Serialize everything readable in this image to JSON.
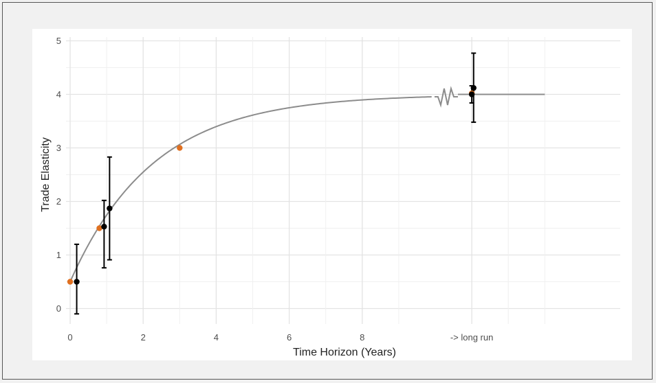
{
  "chart_data": {
    "type": "scatter",
    "xlabel": "Time Horizon (Years)",
    "ylabel": "Trade Elasticity",
    "xlim": [
      -0.2,
      15
    ],
    "ylim": [
      -0.3,
      5
    ],
    "x_ticks": [
      {
        "value": 0,
        "label": "0"
      },
      {
        "value": 2,
        "label": "2"
      },
      {
        "value": 4,
        "label": "4"
      },
      {
        "value": 6,
        "label": "6"
      },
      {
        "value": 8,
        "label": "8"
      },
      {
        "value": 11,
        "label": "-> long run"
      }
    ],
    "y_ticks": [
      {
        "value": 0,
        "label": "0"
      },
      {
        "value": 1,
        "label": "1"
      },
      {
        "value": 2,
        "label": "2"
      },
      {
        "value": 3,
        "label": "3"
      },
      {
        "value": 4,
        "label": "4"
      },
      {
        "value": 5,
        "label": "5"
      }
    ],
    "grid": true,
    "curve": {
      "kind": "saturating",
      "start": 0.5,
      "asymptote": 4,
      "rate": 0.44,
      "x_start": 0,
      "x_break": 9.9,
      "x_end": 13,
      "color": "#8c8c8c"
    },
    "axis_break_at": 10.3,
    "orange_points": {
      "color": "#e07020",
      "points": [
        {
          "x": 0,
          "y": 0.5
        },
        {
          "x": 0.8,
          "y": 1.5
        },
        {
          "x": 3,
          "y": 3
        },
        {
          "x": 11,
          "y": 4.02
        }
      ]
    },
    "black_points": {
      "color": "#000000",
      "points": [
        {
          "x": 0.18,
          "y": 0.5,
          "lo": -0.1,
          "hi": 1.2
        },
        {
          "x": 0.93,
          "y": 1.53,
          "lo": 0.76,
          "hi": 2.02
        },
        {
          "x": 1.08,
          "y": 1.87,
          "lo": 0.91,
          "hi": 2.83
        },
        {
          "x": 11.05,
          "y": 4.12,
          "lo": 3.48,
          "hi": 4.77
        },
        {
          "x": 11,
          "y": 4.0,
          "lo": 3.84,
          "hi": 4.16
        }
      ]
    }
  }
}
